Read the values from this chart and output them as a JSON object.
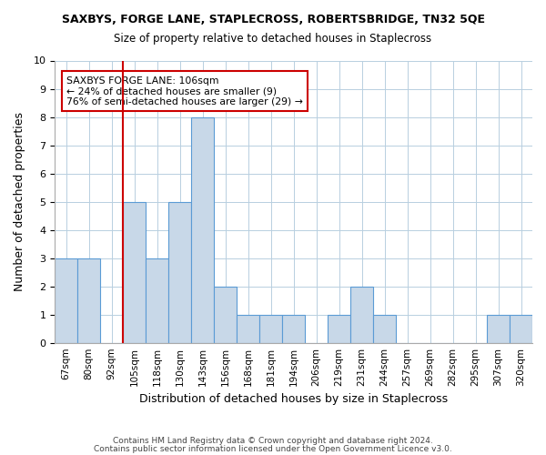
{
  "title": "SAXBYS, FORGE LANE, STAPLECROSS, ROBERTSBRIDGE, TN32 5QE",
  "subtitle": "Size of property relative to detached houses in Staplecross",
  "xlabel": "Distribution of detached houses by size in Staplecross",
  "ylabel": "Number of detached properties",
  "bin_labels": [
    "67sqm",
    "80sqm",
    "92sqm",
    "105sqm",
    "118sqm",
    "130sqm",
    "143sqm",
    "156sqm",
    "168sqm",
    "181sqm",
    "194sqm",
    "206sqm",
    "219sqm",
    "231sqm",
    "244sqm",
    "257sqm",
    "269sqm",
    "282sqm",
    "295sqm",
    "307sqm",
    "320sqm"
  ],
  "bar_heights": [
    3,
    3,
    0,
    5,
    3,
    5,
    8,
    2,
    1,
    1,
    1,
    0,
    1,
    2,
    1,
    0,
    0,
    0,
    0,
    1,
    1
  ],
  "bar_color": "#c8d8e8",
  "bar_edge_color": "#5b9bd5",
  "vline_x_index": 3,
  "vline_color": "#cc0000",
  "ylim": [
    0,
    10
  ],
  "yticks": [
    0,
    1,
    2,
    3,
    4,
    5,
    6,
    7,
    8,
    9,
    10
  ],
  "annotation_title": "SAXBYS FORGE LANE: 106sqm",
  "annotation_line1": "← 24% of detached houses are smaller (9)",
  "annotation_line2": "76% of semi-detached houses are larger (29) →",
  "annotation_box_color": "#ffffff",
  "annotation_box_edge": "#cc0000",
  "footer1": "Contains HM Land Registry data © Crown copyright and database right 2024.",
  "footer2": "Contains public sector information licensed under the Open Government Licence v3.0."
}
